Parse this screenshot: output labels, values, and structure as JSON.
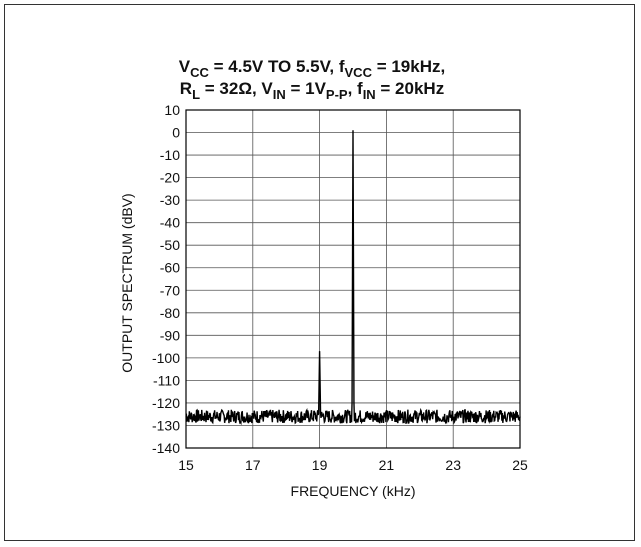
{
  "chart_data": {
    "type": "line",
    "title_line1": {
      "p1": "V",
      "s1": "CC",
      "p2": " = 4.5V TO 5.5V, f",
      "s2": "VCC",
      "p3": " = 19kHz,"
    },
    "title_line2": {
      "p1": "R",
      "s1": "L",
      "p2": " = 32Ω, V",
      "s2": "IN",
      "p3": " = 1V",
      "s3": "P-P",
      "p4": ", f",
      "s4": "IN",
      "p5": " = 20kHz"
    },
    "xlabel": "FREQUENCY (kHz)",
    "ylabel": "OUTPUT SPECTRUM (dBV)",
    "xlim": [
      15,
      25
    ],
    "ylim": [
      -140,
      10
    ],
    "xticks": [
      15,
      17,
      19,
      21,
      23,
      25
    ],
    "yticks": [
      10,
      0,
      -10,
      -20,
      -30,
      -40,
      -50,
      -60,
      -70,
      -80,
      -90,
      -100,
      -110,
      -120,
      -130,
      -140
    ],
    "grid": true,
    "series": [
      {
        "noise_floor_db": -126,
        "noise_range_db": 3,
        "peaks": [
          {
            "x": 19,
            "y": -97
          },
          {
            "x": 20,
            "y": 1
          }
        ],
        "color": "#000000"
      }
    ]
  }
}
